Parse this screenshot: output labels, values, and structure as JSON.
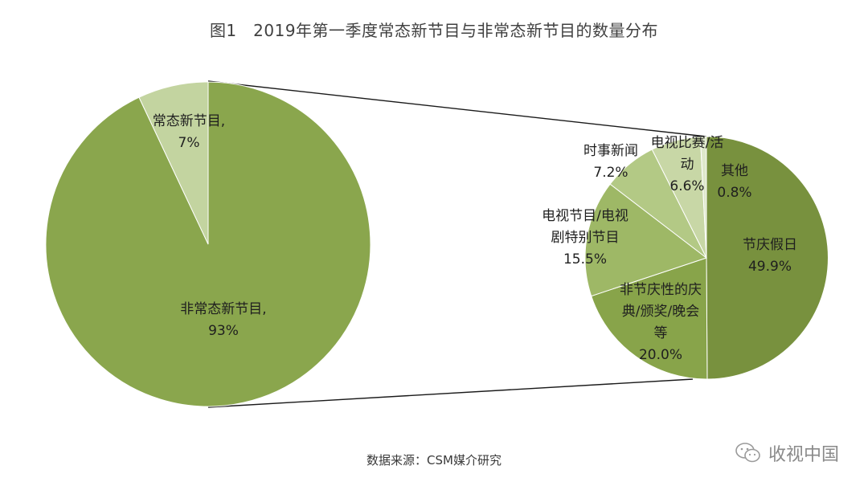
{
  "title": "图1　2019年第一季度常态新节目与非常态新节目的数量分布",
  "source": "数据来源：CSM媒介研究",
  "watermark": "收视中国",
  "chart_data": [
    {
      "type": "pie",
      "title": "",
      "slices": [
        {
          "name_lines": [
            "常态新节目,"
          ],
          "value_text": "7%",
          "value": 7,
          "color": "#c3d4a0"
        },
        {
          "name_lines": [
            "非常态新节目,"
          ],
          "value_text": "93%",
          "value": 93,
          "color": "#8aa64d"
        }
      ]
    },
    {
      "type": "pie",
      "title": "",
      "slices": [
        {
          "name_lines": [
            "节庆假日"
          ],
          "value_text": "49.9%",
          "value": 49.9,
          "color": "#78913e"
        },
        {
          "name_lines": [
            "非节庆性的庆",
            "典/颁奖/晚会",
            "等"
          ],
          "value_text": "20.0%",
          "value": 20.0,
          "color": "#88a44a"
        },
        {
          "name_lines": [
            "电视节目/电视",
            "剧特别节目"
          ],
          "value_text": "15.5%",
          "value": 15.5,
          "color": "#9eb866"
        },
        {
          "name_lines": [
            "时事新闻"
          ],
          "value_text": "7.2%",
          "value": 7.2,
          "color": "#b3c985"
        },
        {
          "name_lines": [
            "电视比赛/活",
            "动"
          ],
          "value_text": "6.6%",
          "value": 6.6,
          "color": "#c8d7a6"
        },
        {
          "name_lines": [
            "其他"
          ],
          "value_text": "0.8%",
          "value": 0.8,
          "color": "#dfe8cb"
        }
      ]
    }
  ]
}
